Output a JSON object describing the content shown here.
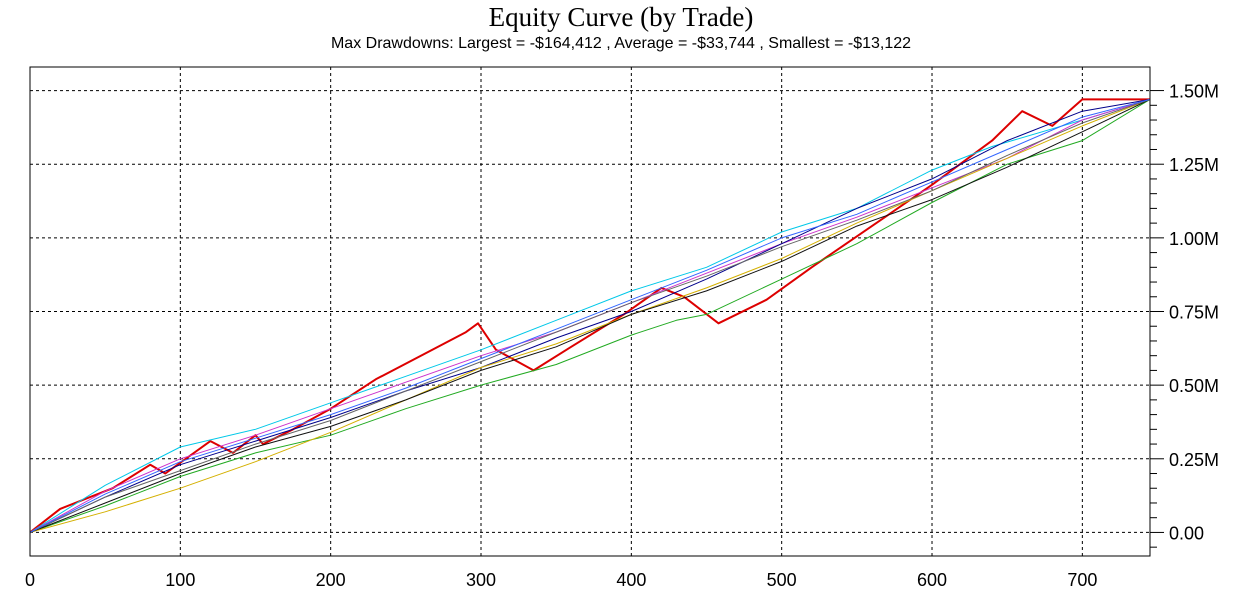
{
  "chart_data": {
    "type": "line",
    "title": "Equity Curve (by Trade)",
    "subtitle": "Max Drawdowns:  Largest = -$164,412 , Average = -$33,744 , Smallest = -$13,122",
    "xlabel": "",
    "ylabel": "",
    "xlim": [
      0,
      745
    ],
    "ylim": [
      -0.08,
      1.58
    ],
    "x_ticks": [
      0,
      100,
      200,
      300,
      400,
      500,
      600,
      700
    ],
    "x_tick_labels": [
      "0",
      "100",
      "200",
      "300",
      "400",
      "500",
      "600",
      "700"
    ],
    "y_ticks": [
      0,
      0.25,
      0.5,
      0.75,
      1.0,
      1.25,
      1.5
    ],
    "y_tick_labels": [
      "0.00",
      "0.25M",
      "0.50M",
      "0.75M",
      "1.00M",
      "1.25M",
      "1.50M"
    ],
    "grid": "dashed",
    "legend": "none",
    "series": [
      {
        "color": "#dd0000",
        "width": 2,
        "points": [
          [
            0,
            0
          ],
          [
            20,
            0.08
          ],
          [
            40,
            0.12
          ],
          [
            55,
            0.15
          ],
          [
            80,
            0.23
          ],
          [
            90,
            0.2
          ],
          [
            120,
            0.31
          ],
          [
            135,
            0.27
          ],
          [
            150,
            0.33
          ],
          [
            155,
            0.3
          ],
          [
            175,
            0.35
          ],
          [
            200,
            0.42
          ],
          [
            230,
            0.52
          ],
          [
            260,
            0.6
          ],
          [
            290,
            0.68
          ],
          [
            298,
            0.71
          ],
          [
            310,
            0.62
          ],
          [
            335,
            0.55
          ],
          [
            360,
            0.63
          ],
          [
            395,
            0.74
          ],
          [
            420,
            0.83
          ],
          [
            435,
            0.8
          ],
          [
            458,
            0.71
          ],
          [
            490,
            0.79
          ],
          [
            520,
            0.9
          ],
          [
            560,
            1.04
          ],
          [
            600,
            1.18
          ],
          [
            640,
            1.33
          ],
          [
            660,
            1.43
          ],
          [
            680,
            1.38
          ],
          [
            700,
            1.47
          ],
          [
            745,
            1.47
          ]
        ]
      },
      {
        "color": "#00c8e8",
        "width": 1,
        "points": [
          [
            0,
            0
          ],
          [
            50,
            0.16
          ],
          [
            100,
            0.29
          ],
          [
            150,
            0.35
          ],
          [
            200,
            0.44
          ],
          [
            250,
            0.53
          ],
          [
            300,
            0.62
          ],
          [
            350,
            0.72
          ],
          [
            400,
            0.82
          ],
          [
            450,
            0.9
          ],
          [
            500,
            1.02
          ],
          [
            550,
            1.1
          ],
          [
            600,
            1.23
          ],
          [
            640,
            1.31
          ],
          [
            700,
            1.4
          ],
          [
            745,
            1.47
          ]
        ]
      },
      {
        "color": "#cc33cc",
        "width": 1,
        "points": [
          [
            0,
            0
          ],
          [
            50,
            0.14
          ],
          [
            100,
            0.25
          ],
          [
            150,
            0.33
          ],
          [
            200,
            0.42
          ],
          [
            250,
            0.51
          ],
          [
            300,
            0.6
          ],
          [
            350,
            0.68
          ],
          [
            400,
            0.78
          ],
          [
            450,
            0.88
          ],
          [
            500,
            0.98
          ],
          [
            550,
            1.07
          ],
          [
            600,
            1.17
          ],
          [
            650,
            1.27
          ],
          [
            700,
            1.4
          ],
          [
            745,
            1.47
          ]
        ]
      },
      {
        "color": "#00008b",
        "width": 1,
        "points": [
          [
            0,
            0
          ],
          [
            50,
            0.12
          ],
          [
            100,
            0.23
          ],
          [
            150,
            0.31
          ],
          [
            200,
            0.39
          ],
          [
            250,
            0.48
          ],
          [
            300,
            0.56
          ],
          [
            350,
            0.66
          ],
          [
            400,
            0.75
          ],
          [
            450,
            0.86
          ],
          [
            500,
            0.98
          ],
          [
            550,
            1.1
          ],
          [
            600,
            1.2
          ],
          [
            650,
            1.33
          ],
          [
            700,
            1.43
          ],
          [
            745,
            1.47
          ]
        ]
      },
      {
        "color": "#22aa22",
        "width": 1,
        "points": [
          [
            0,
            0
          ],
          [
            50,
            0.09
          ],
          [
            100,
            0.19
          ],
          [
            150,
            0.27
          ],
          [
            200,
            0.33
          ],
          [
            250,
            0.42
          ],
          [
            300,
            0.5
          ],
          [
            350,
            0.57
          ],
          [
            400,
            0.67
          ],
          [
            430,
            0.72
          ],
          [
            450,
            0.74
          ],
          [
            500,
            0.86
          ],
          [
            550,
            0.98
          ],
          [
            600,
            1.12
          ],
          [
            650,
            1.25
          ],
          [
            700,
            1.33
          ],
          [
            745,
            1.47
          ]
        ]
      },
      {
        "color": "#d4b000",
        "width": 1,
        "points": [
          [
            0,
            0
          ],
          [
            50,
            0.07
          ],
          [
            100,
            0.15
          ],
          [
            150,
            0.24
          ],
          [
            200,
            0.34
          ],
          [
            250,
            0.45
          ],
          [
            300,
            0.56
          ],
          [
            350,
            0.64
          ],
          [
            400,
            0.74
          ],
          [
            450,
            0.83
          ],
          [
            500,
            0.93
          ],
          [
            550,
            1.05
          ],
          [
            600,
            1.16
          ],
          [
            650,
            1.27
          ],
          [
            700,
            1.38
          ],
          [
            745,
            1.47
          ]
        ]
      },
      {
        "color": "#111111",
        "width": 1,
        "points": [
          [
            0,
            0
          ],
          [
            50,
            0.1
          ],
          [
            100,
            0.2
          ],
          [
            150,
            0.29
          ],
          [
            200,
            0.36
          ],
          [
            250,
            0.45
          ],
          [
            300,
            0.55
          ],
          [
            350,
            0.63
          ],
          [
            400,
            0.74
          ],
          [
            450,
            0.82
          ],
          [
            500,
            0.92
          ],
          [
            550,
            1.04
          ],
          [
            600,
            1.13
          ],
          [
            650,
            1.24
          ],
          [
            700,
            1.36
          ],
          [
            745,
            1.47
          ]
        ]
      },
      {
        "color": "#666666",
        "width": 1,
        "points": [
          [
            0,
            0
          ],
          [
            50,
            0.12
          ],
          [
            100,
            0.21
          ],
          [
            150,
            0.3
          ],
          [
            200,
            0.38
          ],
          [
            250,
            0.48
          ],
          [
            300,
            0.58
          ],
          [
            350,
            0.68
          ],
          [
            400,
            0.78
          ],
          [
            450,
            0.87
          ],
          [
            500,
            0.97
          ],
          [
            550,
            1.06
          ],
          [
            600,
            1.16
          ],
          [
            650,
            1.28
          ],
          [
            700,
            1.39
          ],
          [
            745,
            1.47
          ]
        ]
      },
      {
        "color": "#3366ff",
        "width": 1,
        "points": [
          [
            0,
            0
          ],
          [
            50,
            0.13
          ],
          [
            100,
            0.24
          ],
          [
            150,
            0.32
          ],
          [
            200,
            0.4
          ],
          [
            250,
            0.49
          ],
          [
            300,
            0.59
          ],
          [
            350,
            0.69
          ],
          [
            400,
            0.79
          ],
          [
            450,
            0.89
          ],
          [
            500,
            1.0
          ],
          [
            550,
            1.08
          ],
          [
            600,
            1.19
          ],
          [
            650,
            1.3
          ],
          [
            700,
            1.41
          ],
          [
            745,
            1.47
          ]
        ]
      }
    ]
  }
}
